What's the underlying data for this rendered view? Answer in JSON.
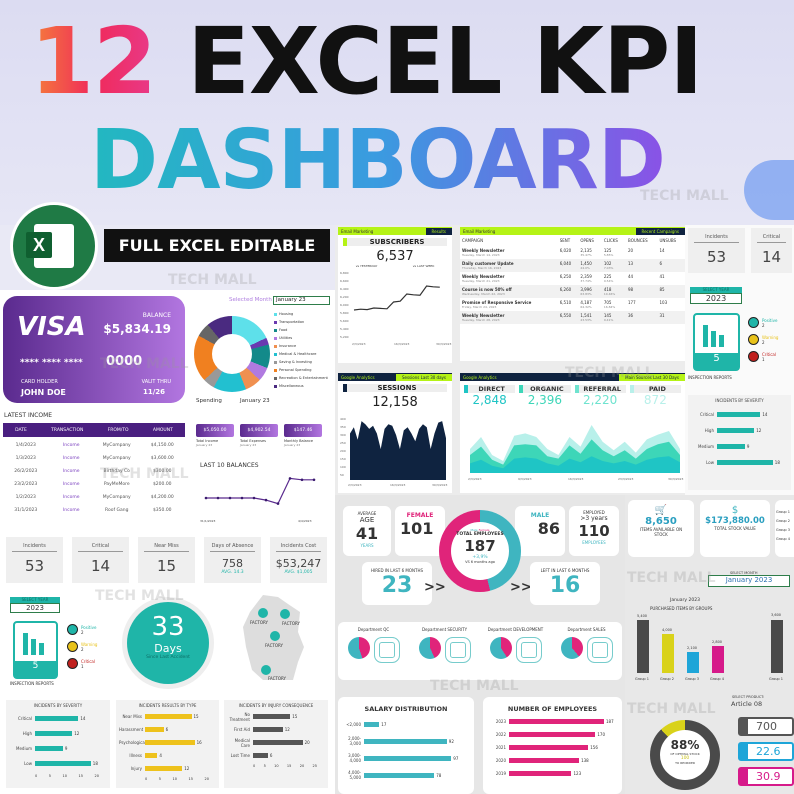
{
  "hero": {
    "number": "12",
    "title_rest": "EXCEL KPI",
    "subtitle": "DASHBOARD",
    "badge": "FULL EXCEL EDITABLE",
    "excel_icon": "excel-logo-icon",
    "watermark": "TECH MALL"
  },
  "finance": {
    "card": {
      "brand": "VISA",
      "balance_label": "BALANCE",
      "balance": "$5,834.19",
      "number_mask": "**** **** ****",
      "last4": "0000",
      "holder_label": "CARD HOLDER",
      "holder": "JOHN DOE",
      "valid_label": "VALIT THRU",
      "valid": "11/26"
    },
    "selected_month_label": "Selected Month",
    "selected_month": "January 23",
    "spending_label": "Spending",
    "spending_month": "January 23",
    "donut": [
      {
        "c": "#5ee0ea",
        "p": 18
      },
      {
        "c": "#6a3ab0",
        "p": 3
      },
      {
        "c": "#138a8a",
        "p": 10
      },
      {
        "c": "#b07ae0",
        "p": 6
      },
      {
        "c": "#f09050",
        "p": 7
      },
      {
        "c": "#22c0d0",
        "p": 14
      },
      {
        "c": "#999999",
        "p": 5
      },
      {
        "c": "#f08020",
        "p": 20
      },
      {
        "c": "#666666",
        "p": 6
      },
      {
        "c": "#4a2a80",
        "p": 11
      }
    ],
    "legend": [
      "Housing",
      "Transportation",
      "Food",
      "Utilities",
      "Insurance",
      "Medical & Healthcare",
      "Saving & Investing",
      "Personal Spending",
      "Recreation & Entertainment",
      "Miscellaneous"
    ],
    "income_title": "LATEST INCOME",
    "income_headers": [
      "DATE",
      "TRANSACTION",
      "FROM/TO",
      "AMOUNT"
    ],
    "income_rows": [
      [
        "1/4/2023",
        "Income",
        "MyCompany",
        "$4,150.00"
      ],
      [
        "1/3/2023",
        "Income",
        "MyCompany",
        "$3,600.00"
      ],
      [
        "26/2/2023",
        "Income",
        "Birthday Co",
        "$300.00"
      ],
      [
        "23/2/2023",
        "Income",
        "PayMeMore",
        "$200.00"
      ],
      [
        "1/2/2023",
        "Income",
        "MyCompany",
        "$4,200.00"
      ],
      [
        "31/1/2023",
        "Income",
        "Roof Gang",
        "$350.00"
      ]
    ],
    "totals": [
      {
        "value": "$5,050.00",
        "label": "Total Income",
        "sub": "January 23"
      },
      {
        "value": "$4,902.54",
        "label": "Total Expenses",
        "sub": "January 23"
      },
      {
        "value": "$147.46",
        "label": "Monthly Balance",
        "sub": "January 23"
      }
    ],
    "balances_title": "LAST 10 BALANCES",
    "balances": [
      2,
      2,
      2,
      2,
      2,
      1.7,
      1.2,
      4.8,
      4.6,
      4.6
    ],
    "balances_x": [
      "31/1/2023",
      "4/4/2023"
    ]
  },
  "email": {
    "left_tag": "Email Marketing",
    "left_btn": "Results",
    "subs_title": "SUBSCRIBERS",
    "subs_value": "6,537",
    "vs_yesterday": "vs YESTERDAY",
    "vs_week": "vs LAST WEEK",
    "subs_trend": [
      5.9,
      5.92,
      5.91,
      5.95,
      5.94,
      5.93,
      6.1,
      6.12,
      6.3,
      6.28,
      6.27,
      6.5,
      6.48,
      6.47
    ],
    "subs_y": [
      "6,800",
      "6,600",
      "6,400",
      "6,200",
      "6,000",
      "5,800",
      "5,600",
      "5,400",
      "5,200"
    ],
    "subs_x": [
      "2/3/2023",
      "16/3/2023",
      "30/3/2023"
    ],
    "right_tag": "Email Marketing",
    "right_btn": "Recent Campaigns",
    "headers": [
      "CAMPAIGN",
      "SENT",
      "OPENS",
      "CLICKS",
      "BOUNCES",
      "UNSUBS"
    ],
    "rows": [
      {
        "name": "Weekly Newsletter",
        "date": "Tuesday, March 14, 2023",
        "sent": "6,020",
        "opens": "2,135",
        "op": "35.47%",
        "clicks": "125",
        "cp": "5.85%",
        "bounces": "20",
        "unsubs": "14"
      },
      {
        "name": "Daily customer Update",
        "date": "Thursday, March 16, 2023",
        "sent": "6,040",
        "opens": "1,450",
        "op": "24.0%",
        "clicks": "102",
        "cp": "7.03%",
        "bounces": "13",
        "unsubs": "6"
      },
      {
        "name": "Weekly Newsletter",
        "date": "Tuesday, March 21, 2023",
        "sent": "6,250",
        "opens": "2,359",
        "op": "37.74%",
        "clicks": "225",
        "cp": "9.54%",
        "bounces": "44",
        "unsubs": "41"
      },
      {
        "name": "Course is now 50% off",
        "date": "Wednesday, March 22, 2023",
        "sent": "6,260",
        "opens": "3,996",
        "op": "63.83%",
        "clicks": "418",
        "cp": "10.46%",
        "bounces": "98",
        "unsubs": "85"
      },
      {
        "name": "Promise of Responsive Service",
        "date": "Friday, March 24, 2023",
        "sent": "6,510",
        "opens": "4,187",
        "op": "64.32%",
        "clicks": "705",
        "cp": "16.84%",
        "bounces": "177",
        "unsubs": "103"
      },
      {
        "name": "Weekly Newsletter",
        "date": "Tuesday, March 28, 2023",
        "sent": "6,550",
        "opens": "1,541",
        "op": "23.53%",
        "clicks": "145",
        "cp": "9.41%",
        "bounces": "36",
        "unsubs": "31"
      }
    ]
  },
  "analytics": {
    "left_tag": "Google Analytics",
    "left_btn": "Sessions Last 30 days",
    "sessions_title": "SESSIONS",
    "sessions_value": "12,158",
    "sessions_y": [
      "400",
      "350",
      "300",
      "250",
      "200",
      "150",
      "100",
      "50"
    ],
    "sessions_x": [
      "2/3/2023",
      "16/3/2023",
      "30/3/2023"
    ],
    "sessions": [
      300,
      340,
      260,
      380,
      360,
      330,
      350,
      300,
      200,
      330,
      360,
      350,
      290,
      200,
      320,
      340,
      300,
      250,
      330,
      360,
      340,
      200,
      300,
      370,
      380,
      270
    ],
    "right_tag": "Google Analytics",
    "right_btn": "Main Sources Last 30 Days",
    "sources": [
      {
        "label": "DIRECT",
        "value": "2,848",
        "color": "#1fc5c5"
      },
      {
        "label": "ORGANIC",
        "value": "2,396",
        "color": "#3dd6b8"
      },
      {
        "label": "REFERRAL",
        "value": "2,220",
        "color": "#6fe3cf"
      },
      {
        "label": "PAID",
        "value": "872",
        "color": "#b8f0ea"
      }
    ],
    "area_x": [
      "2/3/2023",
      "9/3/2023",
      "16/3/2023",
      "23/3/2023",
      "30/3/2023"
    ]
  },
  "safety": {
    "kpis": [
      {
        "label": "Incidents",
        "value": "53"
      },
      {
        "label": "Critical",
        "value": "14"
      },
      {
        "label": "Near Miss",
        "value": "15"
      },
      {
        "label": "Days of Absence",
        "value": "758",
        "sub": "AVG. 14.3"
      },
      {
        "label": "Incidents Cost",
        "value": "$53,247",
        "sub": "AVG. $1,005"
      }
    ],
    "select_year_label": "SELECT YEAR",
    "year": "2023",
    "inspection_count": "5",
    "inspection_label": "INSPECTION REPORTS",
    "statuses": [
      {
        "label": "Positive",
        "value": "2",
        "color": "#1fb5a8"
      },
      {
        "label": "Warning",
        "value": "2",
        "color": "#e8c21a"
      },
      {
        "label": "Critical",
        "value": "1",
        "color": "#c0201e"
      }
    ],
    "days_value": "33",
    "days_label": "Days",
    "days_sub": "Since Last Accident",
    "factory_label": "FACTORY",
    "charts": [
      {
        "title": "INCIDENTS BY SEVERITY",
        "color": "#1fb5a8",
        "max": 20,
        "ticks": [
          "0",
          "5",
          "10",
          "15",
          "20"
        ],
        "items": [
          [
            "Critical",
            14
          ],
          [
            "High",
            12
          ],
          [
            "Medium",
            9
          ],
          [
            "Low",
            18
          ]
        ]
      },
      {
        "title": "INCIDENTS RESULTS BY TYPE",
        "color": "#eec21c",
        "max": 20,
        "ticks": [
          "0",
          "5",
          "10",
          "15",
          "20"
        ],
        "items": [
          [
            "Near Miss",
            15
          ],
          [
            "Harassment",
            6
          ],
          [
            "Psychological",
            16
          ],
          [
            "Illness",
            4
          ],
          [
            "Injury",
            12
          ]
        ]
      },
      {
        "title": "INCIDENTS BY INJURY CONSEQUENCE",
        "color": "#555555",
        "max": 25,
        "ticks": [
          "0",
          "5",
          "10",
          "15",
          "20",
          "25"
        ],
        "items": [
          [
            "No Treatment",
            15
          ],
          [
            "First Aid",
            12
          ],
          [
            "Medical Care",
            20
          ],
          [
            "Lost Time",
            6
          ]
        ]
      }
    ]
  },
  "hr": {
    "avg_label1": "AVERAGE",
    "avg_label2": "AGE",
    "avg_value": "41",
    "avg_unit": "YEARS",
    "female_label": "FEMALE",
    "female_value": "101",
    "male_label": "MALE",
    "male_value": "86",
    "legend_male": "Male",
    "legend_female": "Female",
    "total_label": "TOTAL EMPLOYEES",
    "total_value": "187",
    "change": "+3,9%",
    "change_sub": "VS 6 months ago",
    "employed_label": "EMPLOYED",
    "employed_sub": ">3 years",
    "employed_value": "110",
    "employed_unit": "EMPLOYEES",
    "hired_label": "HIRED IN LAST 6 MONTHS",
    "hired_value": "23",
    "left_label": "LEFT IN LAST 6 MONTHS",
    "left_value": "16",
    "arrow": ">>",
    "departments": [
      "Department QC",
      "Department SECURITY",
      "Department DEVELOPMENT",
      "Department SALES"
    ],
    "salary_title": "SALARY DISTRIBUTION",
    "salary": [
      [
        "<2,000",
        17
      ],
      [
        "2,000-3,000",
        92
      ],
      [
        "3,000-4,000",
        97
      ],
      [
        "4,000-5,000",
        78
      ]
    ],
    "emp_title": "NUMBER OF EMPLOYEES",
    "employees": [
      [
        "2023",
        187
      ],
      [
        "2022",
        170
      ],
      [
        "2021",
        156
      ],
      [
        "2020",
        138
      ],
      [
        "2019",
        123
      ]
    ]
  },
  "inventory": {
    "items_value": "8,650",
    "items_label": "ITEMS AVAILABLE ON STOCK",
    "value_value": "$173,880.00",
    "value_label": "TOTAL STOCK VALUE",
    "groups_short": [
      "Group 1",
      "Group 2",
      "Group 3",
      "Group 4"
    ],
    "select_month_label": "SELECT MONTH",
    "month": "January 2023",
    "chart_month": "January 2023",
    "chart_title": "PURCHASED ITEMS BY GROUPS",
    "groups": [
      {
        "label": "Group 1",
        "value": 5400,
        "vl": "5,400",
        "color": "#4a4a4a"
      },
      {
        "label": "Group 2",
        "value": 4000,
        "vl": "4,000",
        "color": "#d9d21a"
      },
      {
        "label": "Group 3",
        "value": 2100,
        "vl": "2,100",
        "color": "#1ea5d8"
      },
      {
        "label": "Group 4",
        "value": 2800,
        "vl": "2,800",
        "color": "#d61a8a"
      }
    ],
    "next_chart_value": "3,600",
    "next_group": "Group 1",
    "select_product_label": "SELECT PRODUCT:",
    "product": "Article 08",
    "optimal_pct": 88,
    "optimal_label": "88%",
    "optimal_sub": "OF OPTIMAL STOCK",
    "reorder_value": "100",
    "reorder_label": "TO REORDER",
    "metrics": [
      {
        "value": "700",
        "color": "#555555"
      },
      {
        "value": "22.6",
        "color": "#1ea5d8"
      },
      {
        "value": "30.9",
        "color": "#d61a8a"
      }
    ]
  }
}
